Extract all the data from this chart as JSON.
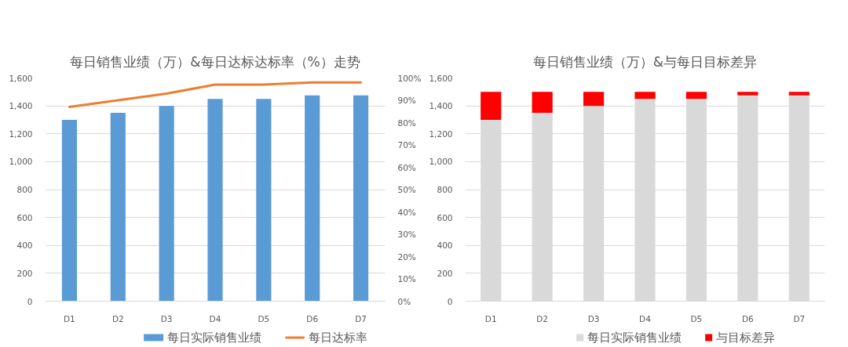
{
  "chart_data": [
    {
      "type": "bar",
      "title": "每日销售业绩（万）&每日达标达标率（%）走势",
      "categories": [
        "D1",
        "D2",
        "D3",
        "D4",
        "D5",
        "D6",
        "D7"
      ],
      "series": [
        {
          "name": "每日实际销售业绩",
          "color": "#5b9bd5",
          "values": [
            1300,
            1350,
            1400,
            1450,
            1450,
            1475,
            1475
          ]
        },
        {
          "name": "每日达标率",
          "type": "line",
          "axis": "y2",
          "color": "#ed7d31",
          "values": [
            87,
            90,
            93,
            97,
            97,
            98,
            98
          ]
        }
      ],
      "ylim": [
        0,
        1600
      ],
      "yticks": [
        0,
        200,
        400,
        600,
        800,
        {
          "value": 1000,
          "label": "1,000"
        },
        {
          "value": 1200,
          "label": "1,200"
        },
        {
          "value": 1400,
          "label": "1,400"
        },
        {
          "value": 1600,
          "label": "1,600"
        }
      ],
      "y2lim": [
        0,
        100
      ],
      "y2ticks": [
        {
          "value": 0,
          "label": "0%"
        },
        {
          "value": 10,
          "label": "10%"
        },
        {
          "value": 20,
          "label": "20%"
        },
        {
          "value": 30,
          "label": "30%"
        },
        {
          "value": 40,
          "label": "40%"
        },
        {
          "value": 50,
          "label": "50%"
        },
        {
          "value": 60,
          "label": "60%"
        },
        {
          "value": 70,
          "label": "70%"
        },
        {
          "value": 80,
          "label": "80%"
        },
        {
          "value": 90,
          "label": "90%"
        },
        {
          "value": 100,
          "label": "100%"
        }
      ],
      "grid": "y",
      "legend": "bottom"
    },
    {
      "type": "bar",
      "stacked": true,
      "title": "每日销售业绩（万）&与每日目标差异",
      "categories": [
        "D1",
        "D2",
        "D3",
        "D4",
        "D5",
        "D6",
        "D7"
      ],
      "series": [
        {
          "name": "每日实际销售业绩",
          "color": "#d9d9d9",
          "values": [
            1300,
            1350,
            1400,
            1450,
            1450,
            1475,
            1475
          ]
        },
        {
          "name": "与目标差异",
          "color": "#ff0000",
          "values": [
            200,
            150,
            100,
            50,
            50,
            25,
            25
          ]
        }
      ],
      "ylim": [
        0,
        1600
      ],
      "yticks": [
        0,
        200,
        400,
        600,
        800,
        {
          "value": 1000,
          "label": "1,000"
        },
        {
          "value": 1200,
          "label": "1,200"
        },
        {
          "value": 1400,
          "label": "1,400"
        },
        {
          "value": 1600,
          "label": "1,600"
        }
      ],
      "grid": "y",
      "legend": "bottom"
    }
  ]
}
